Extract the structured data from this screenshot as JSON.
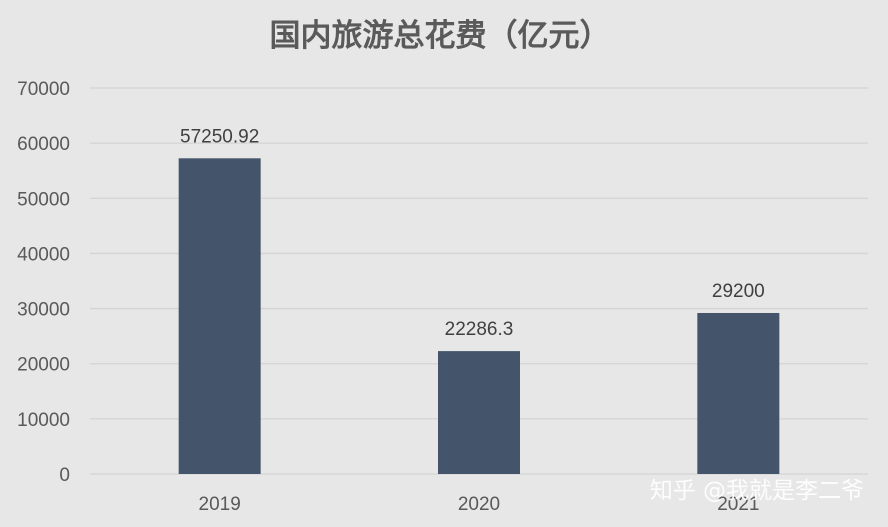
{
  "chart_data": {
    "type": "bar",
    "title": "国内旅游总花费（亿元）",
    "categories": [
      "2019",
      "2020",
      "2021"
    ],
    "values": [
      57250.92,
      22286.3,
      29200
    ],
    "data_labels": [
      "57250.92",
      "22286.3",
      "29200"
    ],
    "y_ticks": [
      "0",
      "10000",
      "20000",
      "30000",
      "40000",
      "50000",
      "60000",
      "70000"
    ],
    "ylim": [
      0,
      70000
    ],
    "grid": true,
    "legend": "none",
    "bar_color": "#44546a",
    "background_color": "#e7e7e7"
  },
  "watermark": "知乎 @我就是李二爷"
}
